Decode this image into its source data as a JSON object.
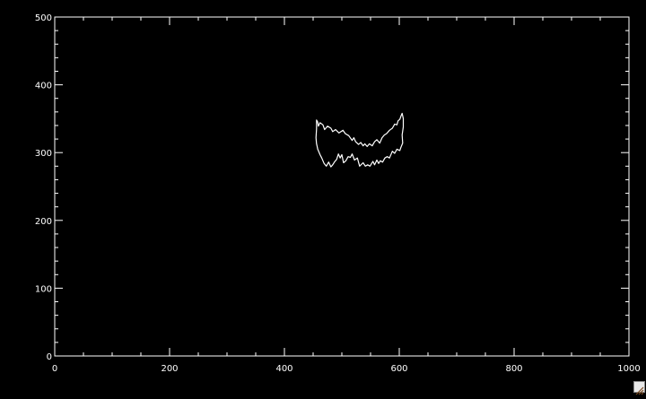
{
  "chart_data": {
    "type": "line",
    "title": "",
    "xlabel": "",
    "ylabel": "",
    "xlim": [
      0,
      1000
    ],
    "ylim": [
      0,
      500
    ],
    "x_ticks": [
      0,
      200,
      400,
      600,
      800,
      1000
    ],
    "y_ticks": [
      0,
      100,
      200,
      300,
      400,
      500
    ],
    "x_minor_step": 50,
    "y_minor_step": 20,
    "grid": false,
    "background": "#000000",
    "foreground": "#ffffff",
    "series": [
      {
        "closed": true,
        "x": [
          456,
          458,
          459,
          462,
          467,
          470,
          475,
          481,
          484,
          489,
          495,
          502,
          506,
          512,
          518,
          521,
          524,
          529,
          533,
          537,
          540,
          544,
          548,
          553,
          557,
          561,
          566,
          570,
          574,
          578,
          583,
          588,
          592,
          596,
          598,
          601,
          603,
          605,
          607,
          607,
          605,
          606,
          603,
          601,
          596,
          592,
          588,
          583,
          579,
          575,
          571,
          567,
          564,
          561,
          557,
          554,
          549,
          545,
          541,
          537,
          531,
          527,
          522,
          518,
          515,
          511,
          507,
          503,
          500,
          497,
          494,
          491,
          487,
          484,
          481,
          477,
          473,
          469,
          465,
          462,
          460,
          458,
          457,
          456,
          455,
          456
        ],
        "y": [
          348,
          345,
          339,
          344,
          341,
          334,
          339,
          336,
          331,
          334,
          329,
          333,
          328,
          325,
          318,
          322,
          316,
          312,
          315,
          310,
          313,
          309,
          313,
          310,
          316,
          319,
          314,
          322,
          326,
          328,
          333,
          336,
          342,
          341,
          347,
          349,
          354,
          358,
          350,
          338,
          326,
          314,
          308,
          303,
          305,
          299,
          302,
          292,
          294,
          292,
          286,
          288,
          284,
          289,
          282,
          287,
          280,
          282,
          280,
          285,
          280,
          292,
          289,
          298,
          293,
          294,
          288,
          285,
          297,
          292,
          298,
          290,
          286,
          282,
          279,
          286,
          280,
          284,
          292,
          297,
          301,
          305,
          309,
          313,
          322,
          335
        ]
      }
    ]
  },
  "toolbar": {
    "resize_icon": "resize-grip-icon"
  }
}
